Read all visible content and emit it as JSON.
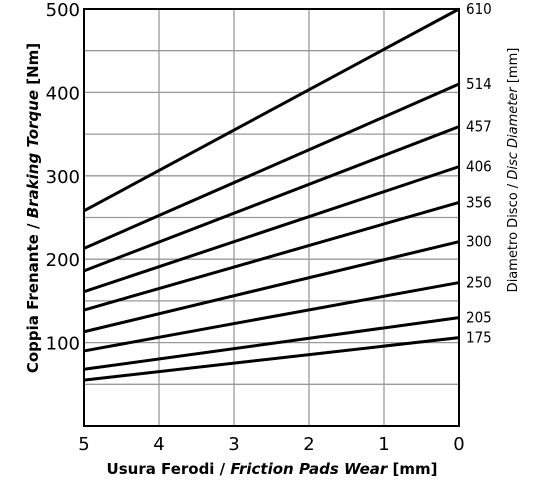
{
  "chart_data": {
    "type": "line",
    "xlabel": {
      "main": "Usura Ferodi / ",
      "italic": "Friction Pads Wear",
      "unit": " [mm]"
    },
    "ylabel": {
      "main": "Coppia Frenante / ",
      "italic": "Braking Torque",
      "unit": " [Nm]"
    },
    "y2label": {
      "main": "Diametro Disco / ",
      "italic": "Disc Diameter",
      "unit": " [mm]"
    },
    "x_ticks": [
      "5",
      "4",
      "3",
      "2",
      "1",
      "0"
    ],
    "y_ticks": [
      "100",
      "200",
      "300",
      "400",
      "500"
    ],
    "xlim": [
      5,
      0
    ],
    "ylim": [
      0,
      500
    ],
    "grid": true,
    "x": [
      5,
      0
    ],
    "series": [
      {
        "name": "610",
        "values": [
          258,
          500
        ]
      },
      {
        "name": "514",
        "values": [
          213,
          410
        ]
      },
      {
        "name": "457",
        "values": [
          186,
          359
        ]
      },
      {
        "name": "406",
        "values": [
          161,
          311
        ]
      },
      {
        "name": "356",
        "values": [
          139,
          268
        ]
      },
      {
        "name": "300",
        "values": [
          113,
          221
        ]
      },
      {
        "name": "250",
        "values": [
          90,
          172
        ]
      },
      {
        "name": "205",
        "values": [
          68,
          130
        ]
      },
      {
        "name": "175",
        "values": [
          55,
          106
        ]
      }
    ]
  }
}
